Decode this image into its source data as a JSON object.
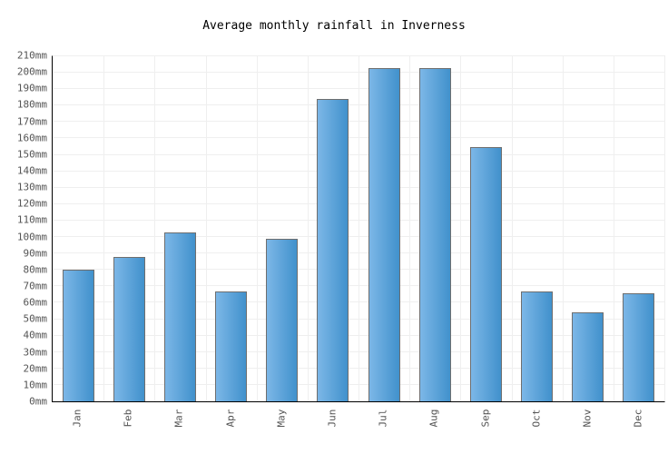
{
  "title": "Average monthly rainfall in Inverness",
  "chart_data": {
    "type": "bar",
    "title": "Average monthly rainfall in Inverness",
    "categories": [
      "Jan",
      "Feb",
      "Mar",
      "Apr",
      "May",
      "Jun",
      "Jul",
      "Aug",
      "Sep",
      "Oct",
      "Nov",
      "Dec"
    ],
    "values": [
      80,
      88,
      103,
      67,
      99,
      184,
      203,
      203,
      155,
      67,
      54,
      66
    ],
    "xlabel": "",
    "ylabel": "",
    "ylim": [
      0,
      210
    ],
    "ytick_step": 10,
    "ytick_suffix": "mm",
    "y_tick_labels": [
      "0mm",
      "10mm",
      "20mm",
      "30mm",
      "40mm",
      "50mm",
      "60mm",
      "70mm",
      "80mm",
      "90mm",
      "100mm",
      "110mm",
      "120mm",
      "130mm",
      "140mm",
      "150mm",
      "160mm",
      "170mm",
      "180mm",
      "190mm",
      "200mm",
      "210mm"
    ],
    "grid": true,
    "legend": "none",
    "colors": {
      "bar_gradient_left": "#7cb7e7",
      "bar_gradient_right": "#4191cc",
      "bar_border": "#6e6e6e",
      "gridline": "#efefef",
      "axis_line": "#000000",
      "tick_text": "#545454",
      "title_text": "#000000",
      "background": "#ffffff"
    }
  }
}
